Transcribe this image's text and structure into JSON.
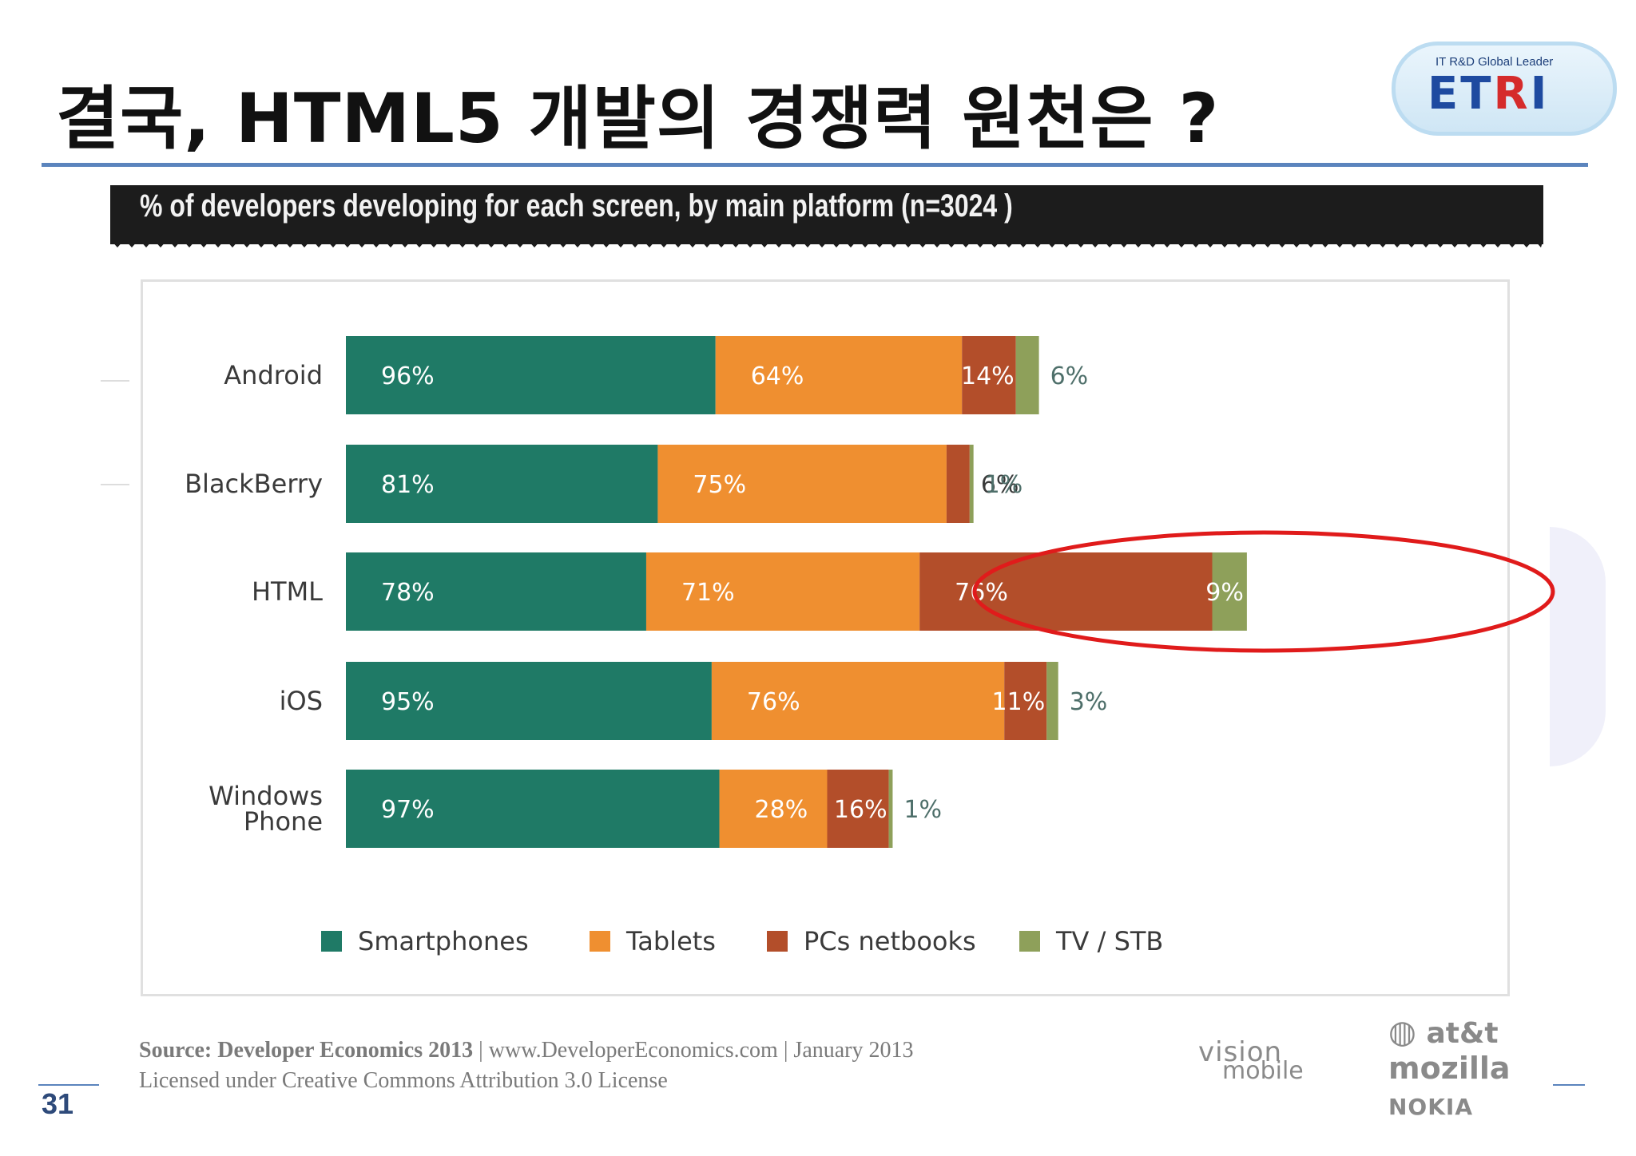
{
  "slide": {
    "title": "결국, HTML5 개발의 경쟁력 원천은 ?",
    "page_number": "31"
  },
  "logo": {
    "tagline": "IT R&D Global Leader",
    "word_blue_1": "ET",
    "word_red": "R",
    "word_blue_2": "I"
  },
  "chart_header": "% of developers developing for each screen, by main platform (n=3024 )",
  "chart_data": {
    "type": "bar",
    "orientation": "horizontal",
    "stacked": true,
    "categories": [
      "Android",
      "BlackBerry",
      "HTML",
      "iOS",
      "Windows Phone"
    ],
    "series": [
      {
        "name": "Smartphones",
        "values": [
          96,
          81,
          78,
          95,
          97
        ],
        "color": "#1f7a66"
      },
      {
        "name": "Tablets",
        "values": [
          64,
          75,
          71,
          76,
          28
        ],
        "color": "#ef8f30"
      },
      {
        "name": "PCs netbooks",
        "values": [
          14,
          6,
          76,
          11,
          16
        ],
        "color": "#b34e2a"
      },
      {
        "name": "TV / STB",
        "values": [
          6,
          1,
          9,
          3,
          1
        ],
        "color": "#8ea05a"
      }
    ],
    "value_suffix": "%",
    "highlight": {
      "category": "HTML",
      "series": "PCs netbooks",
      "style": "red ellipse"
    },
    "legend_position": "bottom",
    "grid": false
  },
  "category_labels": [
    {
      "lines": [
        "Android"
      ]
    },
    {
      "lines": [
        "BlackBerry"
      ]
    },
    {
      "lines": [
        "HTML"
      ]
    },
    {
      "lines": [
        "iOS"
      ]
    },
    {
      "lines": [
        "Windows",
        "Phone"
      ]
    }
  ],
  "source": {
    "bold_part": "Source: Developer Economics 2013",
    "rest": " | www.DeveloperEconomics.com | January 2013",
    "license": "Licensed under Creative Commons Attribution 3.0 License"
  },
  "partners": {
    "vision_line1": "vision",
    "vision_line2": "mobile",
    "att": "at&t",
    "mozilla": "mozilla",
    "nokia": "NOKIA"
  },
  "colors": {
    "title_rule": "#5b84bd",
    "highlight": "#e01b1b",
    "label_text": "#3a3a3a",
    "bar_text": "#ffffff"
  }
}
